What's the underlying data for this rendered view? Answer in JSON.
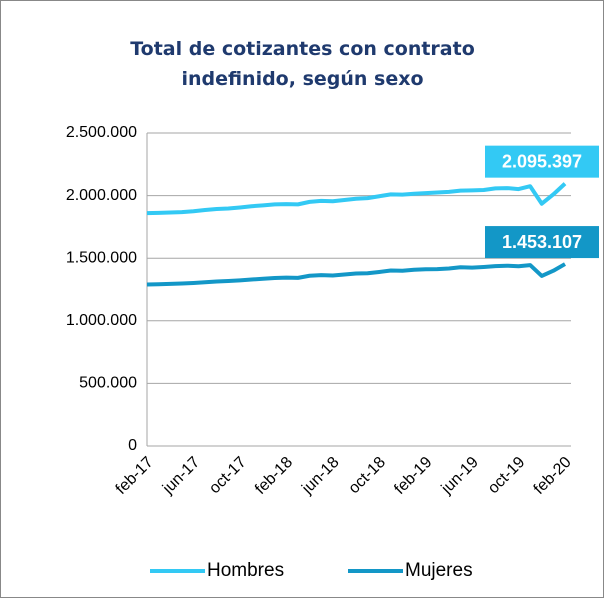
{
  "chart_data": {
    "type": "line",
    "title": "Total de cotizantes con contrato indefinido, según sexo",
    "categories": [
      "feb-17",
      null,
      null,
      null,
      "jun-17",
      null,
      null,
      null,
      "oct-17",
      null,
      null,
      null,
      "feb-18",
      null,
      null,
      null,
      "jun-18",
      null,
      null,
      null,
      "oct-18",
      null,
      null,
      null,
      "feb-19",
      null,
      null,
      null,
      "jun-19",
      null,
      null,
      null,
      "oct-19",
      null,
      null,
      null,
      "feb-20"
    ],
    "series": [
      {
        "name": "Hombres",
        "color": "#33c9f4",
        "values": [
          1860000,
          1862000,
          1865000,
          1868000,
          1875000,
          1885000,
          1893000,
          1897000,
          1905000,
          1915000,
          1922000,
          1930000,
          1932000,
          1930000,
          1950000,
          1958000,
          1955000,
          1965000,
          1975000,
          1980000,
          1995000,
          2010000,
          2008000,
          2015000,
          2020000,
          2025000,
          2030000,
          2040000,
          2042000,
          2045000,
          2058000,
          2060000,
          2052000,
          2075000,
          1935000,
          2010000,
          2095397
        ],
        "value_labels": {
          "36": "2.095.397"
        }
      },
      {
        "name": "Mujeres",
        "color": "#1397c7",
        "values": [
          1290000,
          1292000,
          1295000,
          1298000,
          1302000,
          1308000,
          1314000,
          1318000,
          1323000,
          1330000,
          1336000,
          1342000,
          1345000,
          1343000,
          1360000,
          1365000,
          1362000,
          1370000,
          1378000,
          1380000,
          1390000,
          1402000,
          1400000,
          1408000,
          1412000,
          1413000,
          1418000,
          1428000,
          1425000,
          1430000,
          1437000,
          1440000,
          1436000,
          1445000,
          1358000,
          1400000,
          1453107
        ],
        "value_labels": {
          "36": "1.453.107"
        }
      }
    ],
    "ylim": [
      0,
      2500000
    ],
    "yticks": [
      0,
      {
        "value": 500000,
        "label": "500.000"
      },
      {
        "value": 1000000,
        "label": "1.000.000"
      },
      {
        "value": 1500000,
        "label": "1.500.000"
      },
      {
        "value": 2000000,
        "label": "2.000.000"
      },
      {
        "value": 2500000,
        "label": "2.500.000"
      }
    ],
    "grid": true,
    "legend": "bottom"
  }
}
